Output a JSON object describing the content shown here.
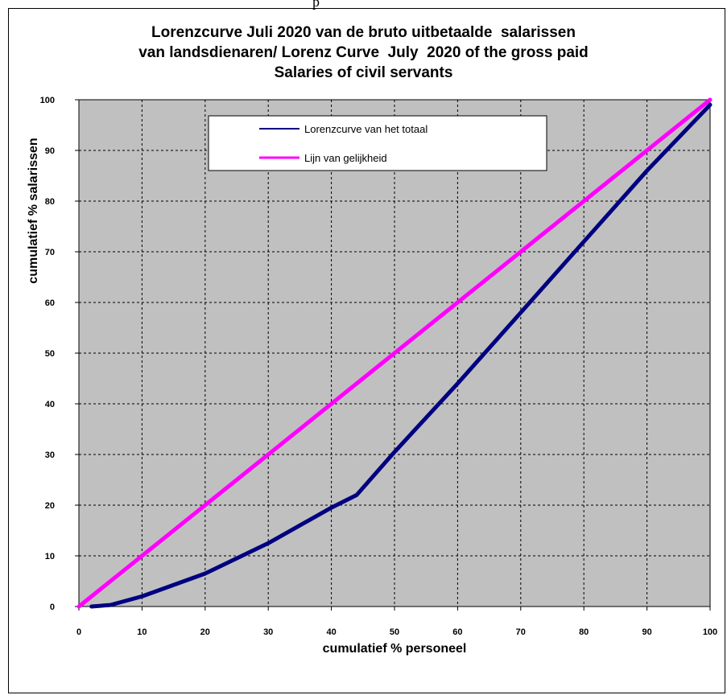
{
  "page": {
    "top_text": "p"
  },
  "chart_data": {
    "type": "line",
    "title_lines": [
      "Lorenzcurve Juli 2020 van de bruto uitbetaalde  salarissen",
      "van landsdienaren/ Lorenz Curve  July  2020 of the gross paid",
      "Salaries of civil servants"
    ],
    "xlabel": "cumulatief % personeel",
    "ylabel": "cumulatief % salarissen",
    "xlim": [
      0,
      100
    ],
    "ylim": [
      0,
      100
    ],
    "xticks": [
      0,
      10,
      20,
      30,
      40,
      50,
      60,
      70,
      80,
      90,
      100
    ],
    "yticks": [
      0,
      10,
      20,
      30,
      40,
      50,
      60,
      70,
      80,
      90,
      100
    ],
    "grid": true,
    "plot_background": "#c0c0c0",
    "legend_position": "top-center",
    "series": [
      {
        "name": "Lorenzcurve van het totaal",
        "color": "#000080",
        "x": [
          2,
          5,
          10,
          20,
          30,
          40,
          44,
          50,
          60,
          70,
          80,
          90,
          100
        ],
        "y": [
          0,
          0.3,
          2,
          6.5,
          12.5,
          19.5,
          22,
          30.5,
          44,
          58,
          72,
          86,
          99
        ]
      },
      {
        "name": "Lijn van gelijkheid",
        "color": "#ff00ff",
        "x": [
          0,
          100
        ],
        "y": [
          0,
          100
        ]
      }
    ]
  }
}
